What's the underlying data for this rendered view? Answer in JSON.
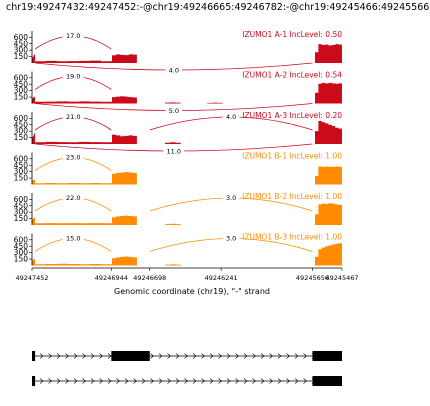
{
  "title": "chr19:49247432:49247452:-@chr19:49246665:49246782:-@chr19:49245466:49245566:-",
  "chart_data": {
    "type": "area",
    "xlabel": "Genomic coordinate (chr19), \"-\" strand",
    "xticks": [
      "49247452",
      "49246944",
      "49246698",
      "49246241",
      "49245656",
      "49245467"
    ],
    "yticks": [
      "600",
      "450",
      "300",
      "150"
    ],
    "ylim": [
      0,
      700
    ],
    "colors": {
      "A": "#cc0b1a",
      "B": "#ff8c00"
    },
    "series": [
      {
        "name": "IZUMO1 A-1",
        "group": "A",
        "label": "IZUMO1 A-1 IncLevel: 0.50",
        "coverage": [
          {
            "start": 49247452,
            "end": 49247432,
            "values": [
              130,
              150,
              180,
              200
            ]
          },
          {
            "start": 49247432,
            "end": 49246940,
            "values": [
              40,
              50,
              40,
              45,
              50,
              55,
              40
            ]
          },
          {
            "start": 49246940,
            "end": 49246780,
            "values": [
              180,
              200,
              190,
              185,
              200,
              195
            ]
          },
          {
            "start": 49245640,
            "end": 49245467,
            "values": [
              250,
              440,
              420,
              430,
              410,
              420,
              440,
              430
            ]
          }
        ],
        "junctions": [
          {
            "from": 49247432,
            "to": 49246944,
            "count": "17.0",
            "side": "top"
          },
          {
            "from": 49247432,
            "to": 49245656,
            "count": "4.0",
            "side": "bottom"
          }
        ]
      },
      {
        "name": "IZUMO1 A-2",
        "group": "A",
        "label": "IZUMO1 A-2 IncLevel: 0.54",
        "coverage": [
          {
            "start": 49247452,
            "end": 49247432,
            "values": [
              120,
              140,
              150,
              160
            ]
          },
          {
            "start": 49247432,
            "end": 49246940,
            "values": [
              40,
              45,
              50,
              45,
              50,
              45,
              40
            ]
          },
          {
            "start": 49246940,
            "end": 49246780,
            "values": [
              150,
              160,
              170,
              160,
              150,
              140
            ]
          },
          {
            "start": 49246600,
            "end": 49246500,
            "values": [
              20,
              25,
              20
            ]
          },
          {
            "start": 49246330,
            "end": 49246230,
            "values": [
              15,
              20,
              15
            ]
          },
          {
            "start": 49245640,
            "end": 49245467,
            "values": [
              250,
              460,
              480,
              470,
              480,
              470,
              460,
              470
            ]
          }
        ],
        "junctions": [
          {
            "from": 49247432,
            "to": 49246944,
            "count": "19.0",
            "side": "top"
          },
          {
            "from": 49247432,
            "to": 49245656,
            "count": "5.0",
            "side": "bottom"
          }
        ]
      },
      {
        "name": "IZUMO1 A-3",
        "group": "A",
        "label": "IZUMO1 A-3 IncLevel: 0.20",
        "coverage": [
          {
            "start": 49247452,
            "end": 49247432,
            "values": [
              160,
              180,
              220,
              250
            ]
          },
          {
            "start": 49247432,
            "end": 49246940,
            "values": [
              40,
              50,
              45,
              40,
              50,
              45,
              40
            ]
          },
          {
            "start": 49246940,
            "end": 49246780,
            "values": [
              220,
              200,
              180,
              190,
              200,
              190
            ]
          },
          {
            "start": 49246600,
            "end": 49246500,
            "values": [
              30,
              40,
              30
            ]
          },
          {
            "start": 49245640,
            "end": 49245467,
            "values": [
              300,
              540,
              510,
              480,
              450,
              420,
              380,
              360
            ]
          }
        ],
        "junctions": [
          {
            "from": 49247432,
            "to": 49246944,
            "count": "21.0",
            "side": "top"
          },
          {
            "from": 49246698,
            "to": 49245656,
            "count": "4.0",
            "side": "top"
          },
          {
            "from": 49247432,
            "to": 49245656,
            "count": "11.0",
            "side": "bottom"
          }
        ]
      },
      {
        "name": "IZUMO1 B-1",
        "group": "B",
        "label": "IZUMO1 B-1 IncLevel: 1.00",
        "coverage": [
          {
            "start": 49247452,
            "end": 49247432,
            "values": [
              90,
              100,
              110,
              110
            ]
          },
          {
            "start": 49247432,
            "end": 49246940,
            "values": [
              30,
              35,
              30,
              35,
              30,
              35,
              30
            ]
          },
          {
            "start": 49246940,
            "end": 49246780,
            "values": [
              250,
              270,
              280,
              290,
              280,
              270
            ]
          },
          {
            "start": 49245640,
            "end": 49245467,
            "values": [
              200,
              420,
              410,
              420,
              410,
              415,
              420,
              410
            ]
          }
        ],
        "junctions": [
          {
            "from": 49247432,
            "to": 49246944,
            "count": "23.0",
            "side": "top"
          }
        ]
      },
      {
        "name": "IZUMO1 B-2",
        "group": "B",
        "label": "IZUMO1 B-2 IncLevel: 1.00",
        "coverage": [
          {
            "start": 49247452,
            "end": 49247432,
            "values": [
              130,
              150,
              170,
              170
            ]
          },
          {
            "start": 49247432,
            "end": 49246940,
            "values": [
              40,
              45,
              40,
              45,
              40,
              45,
              40
            ]
          },
          {
            "start": 49246940,
            "end": 49246780,
            "values": [
              180,
              200,
              210,
              220,
              210,
              200
            ]
          },
          {
            "start": 49246600,
            "end": 49246500,
            "values": [
              20,
              30,
              20
            ]
          },
          {
            "start": 49245640,
            "end": 49245467,
            "values": [
              250,
              480,
              500,
              490,
              510,
              500,
              480,
              470
            ]
          }
        ],
        "junctions": [
          {
            "from": 49247432,
            "to": 49246944,
            "count": "22.0",
            "side": "top"
          },
          {
            "from": 49246698,
            "to": 49245656,
            "count": "3.0",
            "side": "top"
          }
        ]
      },
      {
        "name": "IZUMO1 B-3",
        "group": "B",
        "label": "IZUMO1 B-3 IncLevel: 1.00",
        "coverage": [
          {
            "start": 49247452,
            "end": 49247432,
            "values": [
              110,
              130,
              150,
              150
            ]
          },
          {
            "start": 49247432,
            "end": 49246940,
            "values": [
              30,
              35,
              40,
              35,
              30,
              35,
              30
            ]
          },
          {
            "start": 49246940,
            "end": 49246780,
            "values": [
              170,
              190,
              200,
              210,
              200,
              190
            ]
          },
          {
            "start": 49246600,
            "end": 49246500,
            "values": [
              20,
              25,
              20
            ]
          },
          {
            "start": 49245640,
            "end": 49245467,
            "values": [
              200,
              380,
              420,
              450,
              470,
              490,
              510,
              520
            ]
          }
        ],
        "junctions": [
          {
            "from": 49247432,
            "to": 49246944,
            "count": "15.0",
            "side": "top"
          },
          {
            "from": 49246698,
            "to": 49245656,
            "count": "3.0",
            "side": "top"
          }
        ]
      }
    ],
    "transcripts": [
      {
        "exons": [
          [
            49247452,
            49247432
          ],
          [
            49246944,
            49246698
          ],
          [
            49245656,
            49245467
          ]
        ]
      },
      {
        "exons": [
          [
            49247452,
            49247432
          ],
          [
            49245656,
            49245467
          ]
        ]
      }
    ]
  }
}
